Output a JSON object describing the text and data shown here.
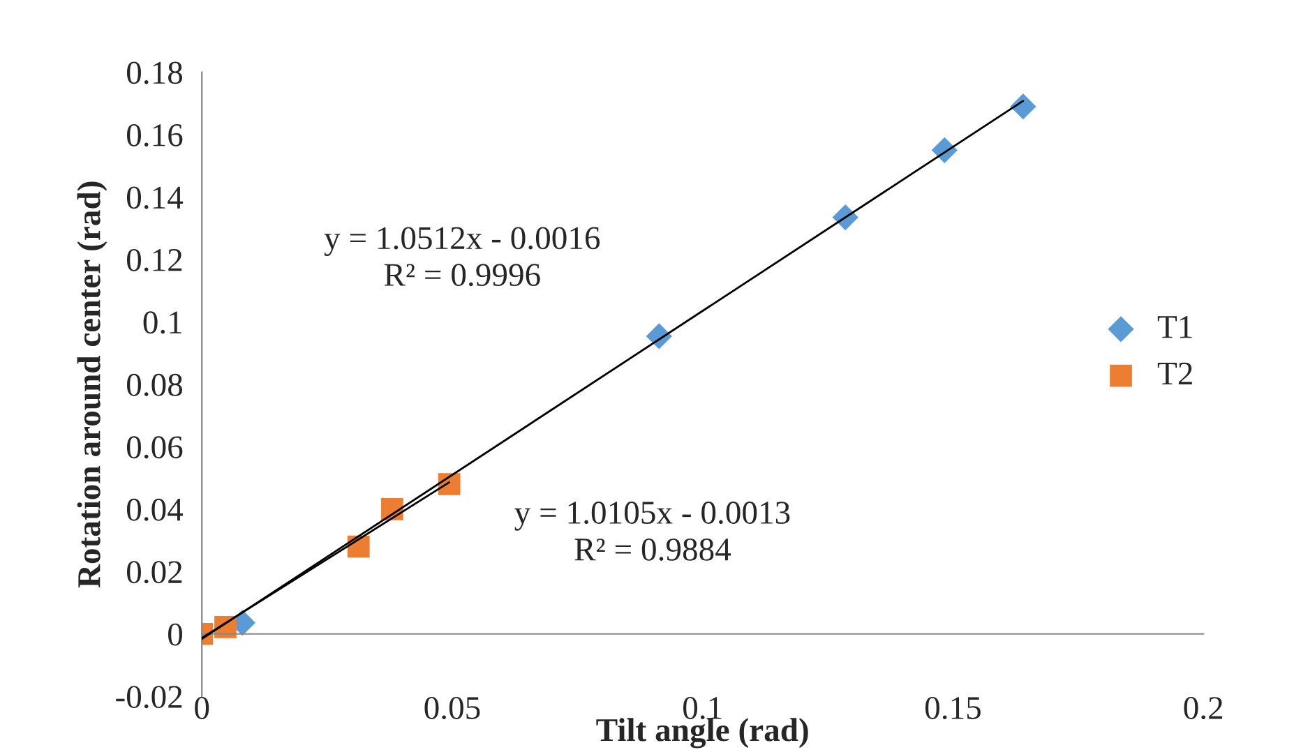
{
  "chart_data": {
    "type": "scatter",
    "xlabel": "Tilt angle (rad)",
    "ylabel": "Rotation around center (rad)",
    "xlim": [
      0,
      0.2
    ],
    "xticks": [
      0,
      0.05,
      0.1,
      0.15,
      0.2
    ],
    "ylim": [
      -0.02,
      0.18
    ],
    "yticks": [
      -0.02,
      0,
      0.02,
      0.04,
      0.06,
      0.08,
      0.1,
      0.12,
      0.14,
      0.16,
      0.18
    ],
    "grid": false,
    "legend": "right",
    "series": [
      {
        "name": "T1",
        "color": "#5b9bd5",
        "marker": "diamond",
        "x": [
          0.0081,
          0.0913,
          0.1285,
          0.1483,
          0.164
        ],
        "values": [
          0.0036,
          0.0954,
          0.1335,
          0.155,
          0.169
        ]
      },
      {
        "name": "T2",
        "color": "#ed7d31",
        "marker": "square",
        "x": [
          0,
          0.0047,
          0.0313,
          0.038,
          0.0494
        ],
        "values": [
          0,
          0.0022,
          0.028,
          0.04,
          0.048
        ]
      },
      {
        "type": "line",
        "color": "#000000",
        "x": [
          0,
          0.164
        ],
        "values": [
          -0.0016,
          0.1708
        ]
      },
      {
        "type": "line",
        "color": "#000000",
        "x": [
          0,
          0.0494
        ],
        "values": [
          -0.0013,
          0.0486
        ]
      }
    ],
    "annotations": [
      "y = 1.0512x - 0.0016\nR² = 0.9996",
      "y = 1.0105x - 0.0013\nR² = 0.9884"
    ]
  }
}
